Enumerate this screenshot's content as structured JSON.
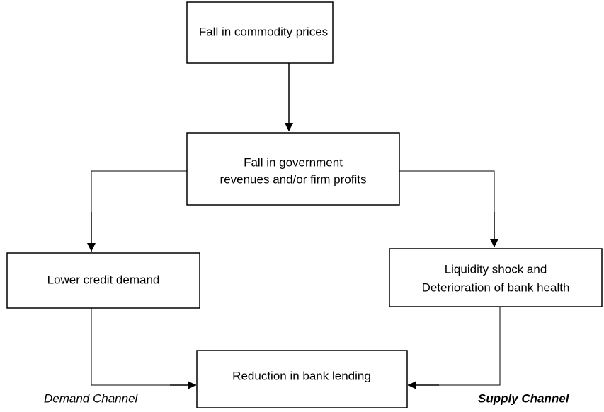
{
  "nodes": [
    {
      "label": "Fall in commodity prices"
    },
    {
      "lines": [
        "Fall in government",
        "revenues and/or firm profits"
      ]
    },
    {
      "label": "Lower credit demand"
    },
    {
      "lines": [
        "Liquidity shock and",
        "Deterioration of bank health"
      ]
    },
    {
      "label": "Reduction in bank lending"
    }
  ],
  "channels": [
    {
      "label": "Demand Channel"
    },
    {
      "label": "Supply Channel"
    }
  ]
}
